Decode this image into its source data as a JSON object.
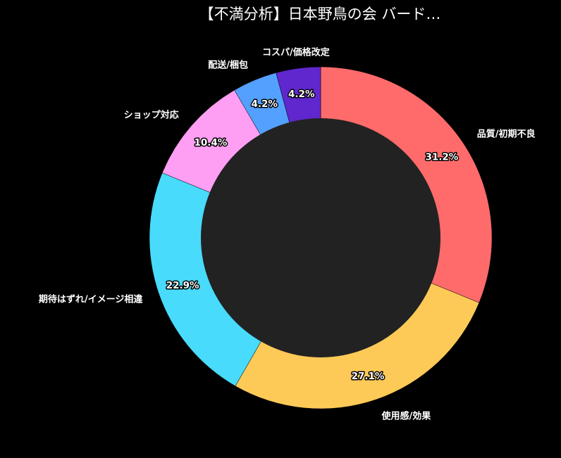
{
  "chart_data": {
    "type": "pie",
    "title": "【不満分析】日本野鳥の会 バード…",
    "donut": true,
    "slices": [
      {
        "label": "品質/初期不良",
        "value": 31.2,
        "value_label": "31.2%",
        "color": "#ff6b6b"
      },
      {
        "label": "使用感/効果",
        "value": 27.1,
        "value_label": "27.1%",
        "color": "#feca57"
      },
      {
        "label": "期待はずれ/イメージ相違",
        "value": 22.9,
        "value_label": "22.9%",
        "color": "#48dbfb"
      },
      {
        "label": "ショップ対応",
        "value": 10.4,
        "value_label": "10.4%",
        "color": "#ff9ff3"
      },
      {
        "label": "配送/梱包",
        "value": 4.2,
        "value_label": "4.2%",
        "color": "#54a0ff"
      },
      {
        "label": "コスパ/価格改定",
        "value": 4.2,
        "value_label": "4.2%",
        "color": "#5f27cd"
      }
    ],
    "start": "top",
    "direction": "clockwise",
    "center_color": "#222222",
    "background": "#000000"
  }
}
